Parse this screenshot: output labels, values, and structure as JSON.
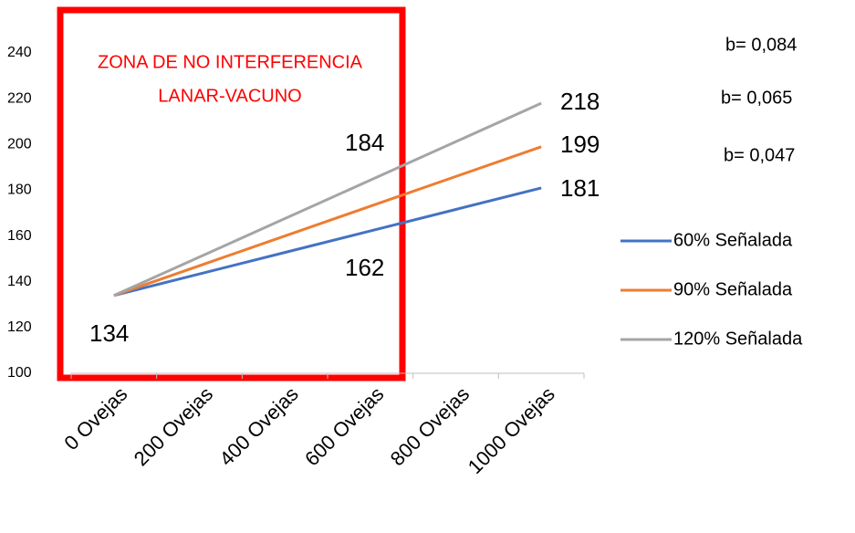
{
  "chart_data": {
    "type": "line",
    "categories": [
      "0 Ovejas",
      "200 Ovejas",
      "400 Ovejas",
      "600 Ovejas",
      "800 Ovejas",
      "1000 Ovejas"
    ],
    "series": [
      {
        "name": "60% Señalada",
        "color": "#4472c4",
        "values": [
          134,
          143.4,
          152.8,
          162.2,
          171.6,
          181
        ]
      },
      {
        "name": "90% Señalada",
        "color": "#ed7d31",
        "values": [
          134,
          147,
          160,
          173,
          186,
          199
        ]
      },
      {
        "name": "120% Señalada",
        "color": "#a5a5a5",
        "values": [
          134,
          150.8,
          167.6,
          184.4,
          201.2,
          218
        ]
      }
    ],
    "ylim": [
      100,
      240
    ],
    "yticks": [
      100,
      120,
      140,
      160,
      180,
      200,
      220,
      240
    ],
    "grid": false,
    "legend": "right",
    "zone": {
      "lines": [
        "ZONA DE NO INTERFERENCIA",
        "LANAR-VACUNO"
      ],
      "color": "#ff0000"
    },
    "annotations": [
      "134",
      "162",
      "184",
      "218",
      "199",
      "181"
    ],
    "slopes": [
      "b= 0,084",
      "b= 0,065",
      "b= 0,047"
    ]
  }
}
